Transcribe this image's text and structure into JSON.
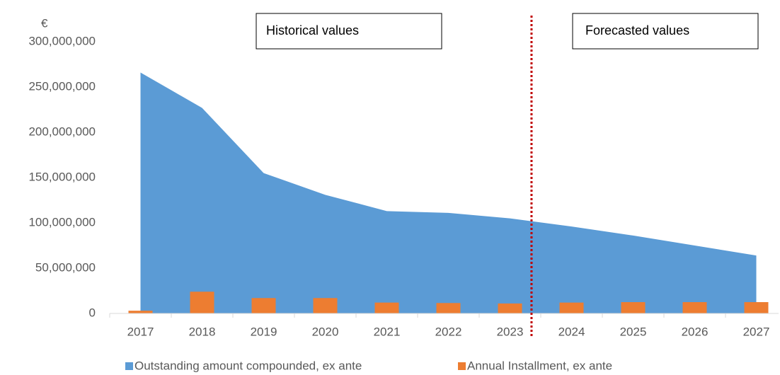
{
  "chart_data": {
    "type": "combo",
    "unit_label": "€",
    "annotations": [
      "Historical values",
      "Forecasted values"
    ],
    "categories": [
      "2017",
      "2018",
      "2019",
      "2020",
      "2021",
      "2022",
      "2023",
      "2024",
      "2025",
      "2026",
      "2027"
    ],
    "series": [
      {
        "name": "Outstanding amount compounded, ex ante",
        "type": "area",
        "color": "#5b9bd5",
        "values": [
          266000000,
          227000000,
          155000000,
          131000000,
          113000000,
          111000000,
          105000000,
          96000000,
          86000000,
          75000000,
          64000000
        ]
      },
      {
        "name": "Annual Installment, ex ante",
        "type": "bar",
        "color": "#ed7d31",
        "values": [
          3000000,
          24000000,
          17000000,
          17000000,
          12000000,
          11500000,
          11000000,
          12000000,
          12500000,
          12500000,
          12500000
        ]
      }
    ],
    "ylim": [
      0,
      300000000
    ],
    "yticks": [
      0,
      {
        "value": 50000000,
        "label": "50,000,000"
      },
      {
        "value": 100000000,
        "label": "100,000,000"
      },
      {
        "value": 150000000,
        "label": "150,000,000"
      },
      {
        "value": 200000000,
        "label": "200,000,000"
      },
      {
        "value": 250000000,
        "label": "250,000,000"
      },
      {
        "value": 300000000,
        "label": "300,000,000"
      }
    ],
    "legend": "bottom"
  }
}
